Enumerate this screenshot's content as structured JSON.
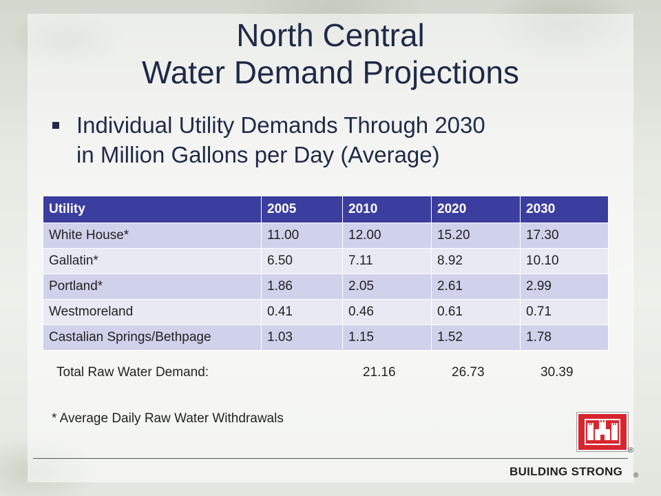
{
  "title": {
    "line1": "North Central",
    "line2": "Water Demand Projections"
  },
  "bullet": {
    "line1": "Individual Utility Demands Through 2030",
    "line2": "in Million Gallons per Day (Average)"
  },
  "table": {
    "headers": [
      "Utility",
      "2005",
      "2010",
      "2020",
      "2030"
    ],
    "rows": [
      [
        "White House*",
        "11.00",
        "12.00",
        "15.20",
        "17.30"
      ],
      [
        "Gallatin*",
        "6.50",
        "7.11",
        "8.92",
        "10.10"
      ],
      [
        "Portland*",
        "1.86",
        "2.05",
        "2.61",
        "2.99"
      ],
      [
        "Westmoreland",
        "0.41",
        "0.46",
        "0.61",
        "0.71"
      ],
      [
        "Castalian Springs/Bethpage",
        "1.03",
        "1.15",
        "1.52",
        "1.78"
      ]
    ]
  },
  "total": {
    "label": "Total Raw Water Demand:",
    "values": [
      "21.16",
      "26.73",
      "30.39"
    ]
  },
  "footnote": "* Average Daily Raw Water Withdrawals",
  "footer": {
    "brand": "BUILDING STRONG",
    "registered": "®"
  },
  "colors": {
    "title": "#1f2a4a",
    "header_bg": "#3b3d9f",
    "row_odd": "#d0d1ea",
    "row_even": "#e9e9f4",
    "logo_red": "#d7262f"
  },
  "icons": {
    "logo": "castle-logo-icon"
  }
}
